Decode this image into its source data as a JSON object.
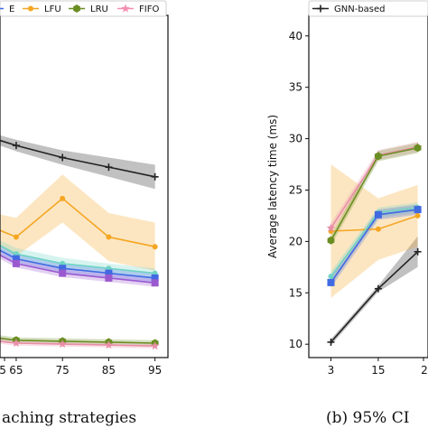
{
  "chart_data": [
    {
      "type": "line",
      "panel": "left",
      "caption": "aching strategies",
      "x": [
        65,
        75,
        85,
        95
      ],
      "x_ticks": [
        "65",
        "75",
        "85",
        "95"
      ],
      "x_tick_partial": "5",
      "legend": {
        "placement": "top",
        "entries": [
          {
            "name": "E",
            "color": "#4169e1"
          },
          {
            "name": "LFU",
            "color": "#f5a623"
          },
          {
            "name": "LRU",
            "color": "#6b8e23"
          },
          {
            "name": "FIFO",
            "color": "#f48fb1"
          }
        ]
      },
      "series": [
        {
          "key": "black",
          "color": "#222222",
          "x": [
            60,
            65,
            75,
            85,
            95
          ],
          "values": [
            48.5,
            47.0,
            44.5,
            42.5,
            40.5
          ],
          "band": [
            1.0,
            1.2,
            1.5,
            2.0,
            2.5
          ]
        },
        {
          "key": "LFU",
          "color": "#f5a623",
          "x": [
            60,
            65,
            75,
            85,
            95
          ],
          "values": [
            30,
            28,
            36,
            28,
            26
          ],
          "band": [
            3,
            4,
            5,
            5,
            5
          ]
        },
        {
          "key": "cyan",
          "color": "#6fd3c5",
          "x": [
            60,
            65,
            75,
            85,
            95
          ],
          "values": [
            27,
            24.5,
            22.5,
            21.5,
            20.5
          ],
          "band": [
            1.0,
            1.2,
            1.2,
            1.0,
            1.0
          ]
        },
        {
          "key": "blue",
          "color": "#4169e1",
          "x": [
            60,
            65,
            75,
            85,
            95
          ],
          "values": [
            26,
            23.5,
            21.5,
            20.5,
            19.5
          ],
          "band": [
            1.0,
            1.0,
            1.0,
            1.0,
            1.0
          ]
        },
        {
          "key": "violet",
          "color": "#9b59d0",
          "x": [
            60,
            65,
            75,
            85,
            95
          ],
          "values": [
            25,
            22.5,
            20.5,
            19.5,
            18.5
          ],
          "band": [
            0.8,
            0.8,
            0.8,
            0.8,
            0.8
          ]
        },
        {
          "key": "LRU",
          "color": "#6b8e23",
          "x": [
            60,
            65,
            75,
            85,
            95
          ],
          "values": [
            7.2,
            6.6,
            6.4,
            6.2,
            6.0
          ],
          "band": [
            0.6,
            0.6,
            0.6,
            0.6,
            0.6
          ]
        },
        {
          "key": "FIFO",
          "color": "#e98fa8",
          "x": [
            60,
            65,
            75,
            85,
            95
          ],
          "values": [
            6.5,
            6.0,
            5.8,
            5.6,
            5.4
          ],
          "band": [
            0.5,
            0.5,
            0.5,
            0.5,
            0.5
          ]
        }
      ]
    },
    {
      "type": "line",
      "panel": "right",
      "caption": "(b) 95% CI",
      "ylabel": "Average latency time (ms)",
      "ylim": [
        8.7,
        42
      ],
      "y_ticks": [
        10,
        15,
        20,
        25,
        30,
        35,
        40
      ],
      "x": [
        3,
        15
      ],
      "x_ticks": [
        "3",
        "15"
      ],
      "x_tick_partial": "2",
      "legend": {
        "placement": "top",
        "entries": [
          {
            "name": "GNN-based",
            "color": "#222222"
          }
        ]
      },
      "series": [
        {
          "key": "GNN-based",
          "color": "#222222",
          "x": [
            3,
            15,
            25
          ],
          "values": [
            10.2,
            15.4,
            19.0
          ],
          "band": [
            0.3,
            0.3,
            1.5
          ]
        },
        {
          "key": "LFU",
          "color": "#f5a623",
          "x": [
            3,
            15,
            25
          ],
          "values": [
            21.0,
            21.2,
            22.5
          ],
          "band": [
            6.5,
            3.0,
            3.0
          ]
        },
        {
          "key": "pink",
          "color": "#e98fa8",
          "x": [
            3,
            15,
            25
          ],
          "values": [
            21.3,
            28.4,
            29.2
          ],
          "band": [
            0.5,
            0.5,
            0.5
          ]
        },
        {
          "key": "LRU",
          "color": "#6b8e23",
          "x": [
            3,
            15,
            25
          ],
          "values": [
            20.1,
            28.3,
            29.1
          ],
          "band": [
            0.5,
            0.5,
            0.5
          ]
        },
        {
          "key": "cyan",
          "color": "#6fd3c5",
          "x": [
            3,
            15,
            25
          ],
          "values": [
            16.6,
            22.8,
            23.3
          ],
          "band": [
            0.5,
            0.5,
            0.5
          ]
        },
        {
          "key": "blue",
          "color": "#4169e1",
          "x": [
            3,
            15,
            25
          ],
          "values": [
            16.0,
            22.6,
            23.1
          ],
          "band": [
            0.5,
            0.5,
            0.5
          ]
        }
      ]
    }
  ]
}
